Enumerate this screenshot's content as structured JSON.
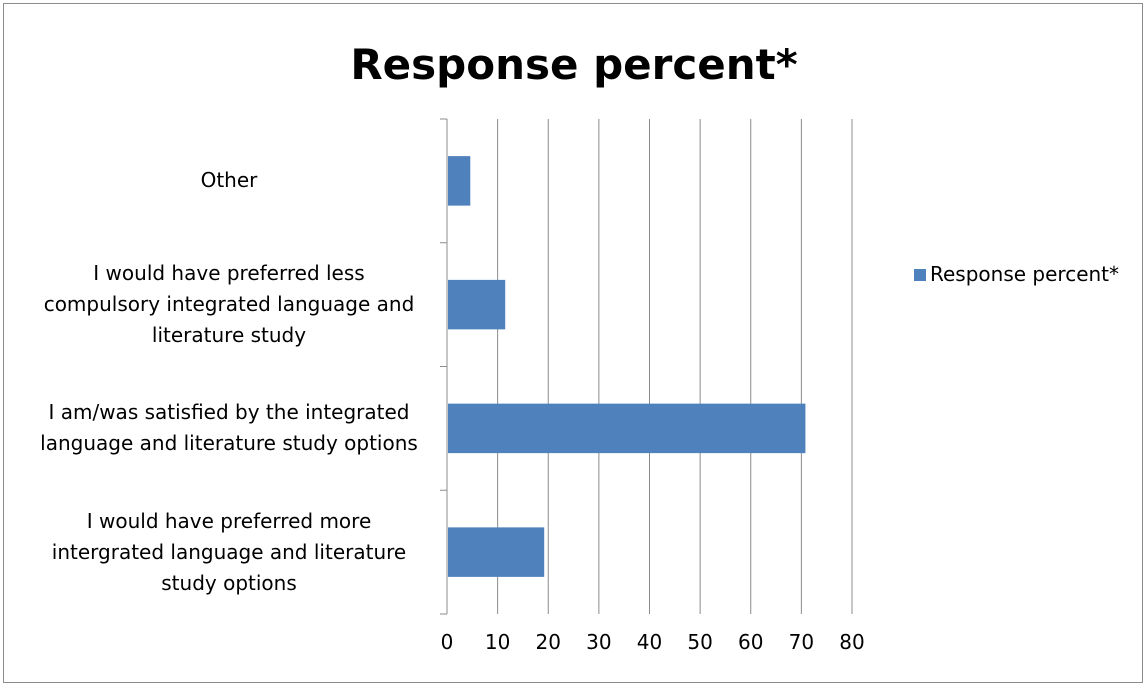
{
  "chart_data": {
    "type": "bar",
    "orientation": "horizontal",
    "title": "Response percent*",
    "categories": [
      "I would have preferred more intergrated language and literature study options",
      "I am/was satisfied by the integrated language and literature study options",
      "I would have preferred less compulsory integrated language and literature study",
      "Other"
    ],
    "category_lines": [
      [
        "I would have preferred more",
        "intergrated language and literature",
        "study options"
      ],
      [
        "I am/was satisfied by the integrated",
        "language and literature study options"
      ],
      [
        "I would have preferred less",
        "compulsory integrated language and",
        "literature study"
      ],
      [
        "Other"
      ]
    ],
    "series": [
      {
        "name": "Response percent*",
        "color": "#4f81bd",
        "values": [
          19.2,
          70.8,
          11.5,
          4.6
        ]
      }
    ],
    "xlim": [
      0,
      80
    ],
    "xticks": [
      0,
      10,
      20,
      30,
      40,
      50,
      60,
      70,
      80
    ],
    "grid": "vertical",
    "legend": "right",
    "xlabel": "",
    "ylabel": ""
  },
  "legend": {
    "label": "Response percent*"
  }
}
